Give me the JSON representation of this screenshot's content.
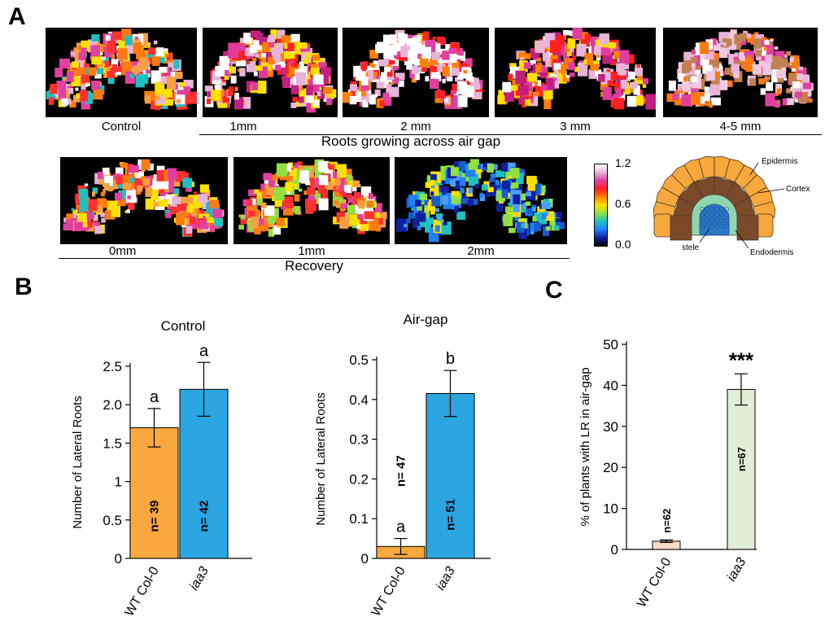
{
  "panels": {
    "a": "A",
    "b": "B",
    "c": "C"
  },
  "panel_a": {
    "row1": [
      {
        "label": "Control",
        "palette": "mixed"
      },
      {
        "label": "1mm",
        "palette": "hot"
      },
      {
        "label": "2 mm",
        "palette": "white"
      },
      {
        "label": "3 mm",
        "palette": "hot"
      },
      {
        "label": "4-5 mm",
        "palette": "pale"
      }
    ],
    "row1_group": "Roots growing across air gap",
    "row2": [
      {
        "label": "0mm",
        "palette": "mixed"
      },
      {
        "label": "1mm",
        "palette": "warm"
      },
      {
        "label": "2mm",
        "palette": "cool"
      }
    ],
    "row2_group": "Recovery",
    "colorbar": {
      "ticks": [
        "1.2",
        "0.6",
        "0.0"
      ],
      "colors": [
        "#ffffff",
        "#e8b4d8",
        "#e040a0",
        "#ff2020",
        "#ff8000",
        "#ffe000",
        "#90e040",
        "#20c0c0",
        "#2080ff",
        "#1020a0",
        "#000000"
      ]
    },
    "diagram": {
      "labels": {
        "epidermis": "Epidermis",
        "cortex": "Cortex",
        "stele": "stele",
        "endodermis": "Endodermis"
      },
      "colors": {
        "epidermis": "#f8a83c",
        "cortex": "#7a4a2a",
        "endodermis": "#8fd6b0",
        "stele": "#2a78c8",
        "outline": "#4a3a2a"
      }
    }
  },
  "chart_data": [
    {
      "type": "bar",
      "title": "Control",
      "ylabel": "Number of Lateral Roots",
      "categories": [
        "WT Col-0",
        "iaa3"
      ],
      "values": [
        1.7,
        2.2
      ],
      "errors": [
        0.25,
        0.35
      ],
      "n_labels": [
        "n= 39",
        "n= 42"
      ],
      "sig_letters": [
        "a",
        "a"
      ],
      "colors": [
        "#f8a83c",
        "#2ba6e0"
      ],
      "ylim": [
        0,
        2.5
      ],
      "yticks": [
        0,
        0.5,
        1,
        1.5,
        2.0,
        2.5
      ],
      "ytick_labels": [
        "0",
        "0.5",
        "1",
        "1.5",
        "2.0",
        "2.5"
      ]
    },
    {
      "type": "bar",
      "title": "Air-gap",
      "ylabel": "Number of Lateral Roots",
      "categories": [
        "WT Col-0",
        "iaa3"
      ],
      "values": [
        0.03,
        0.415
      ],
      "errors": [
        0.02,
        0.058
      ],
      "n_labels": [
        "n= 47",
        "n= 51"
      ],
      "sig_letters": [
        "a",
        "b"
      ],
      "colors": [
        "#f8a83c",
        "#2ba6e0"
      ],
      "ylim": [
        0,
        0.5
      ],
      "yticks": [
        0,
        0.1,
        0.2,
        0.3,
        0.4,
        0.5
      ],
      "ytick_labels": [
        "0",
        "0.1",
        "0.2",
        "0.3",
        "0.4",
        "0.5"
      ]
    },
    {
      "type": "bar",
      "title": "",
      "ylabel": "% of plants with LR in air-gap",
      "categories": [
        "WT Col-0",
        "iaa3"
      ],
      "values": [
        2,
        39
      ],
      "errors": [
        0.3,
        3.8
      ],
      "n_labels": [
        "n=62",
        "n=67"
      ],
      "sig_marks": [
        "",
        "***"
      ],
      "colors": [
        "#f8dcc8",
        "#e0eed8"
      ],
      "ylim": [
        0,
        50
      ],
      "yticks": [
        0,
        10,
        20,
        30,
        40,
        50
      ],
      "ytick_labels": [
        "0",
        "10",
        "20",
        "30",
        "40",
        "50"
      ]
    }
  ]
}
